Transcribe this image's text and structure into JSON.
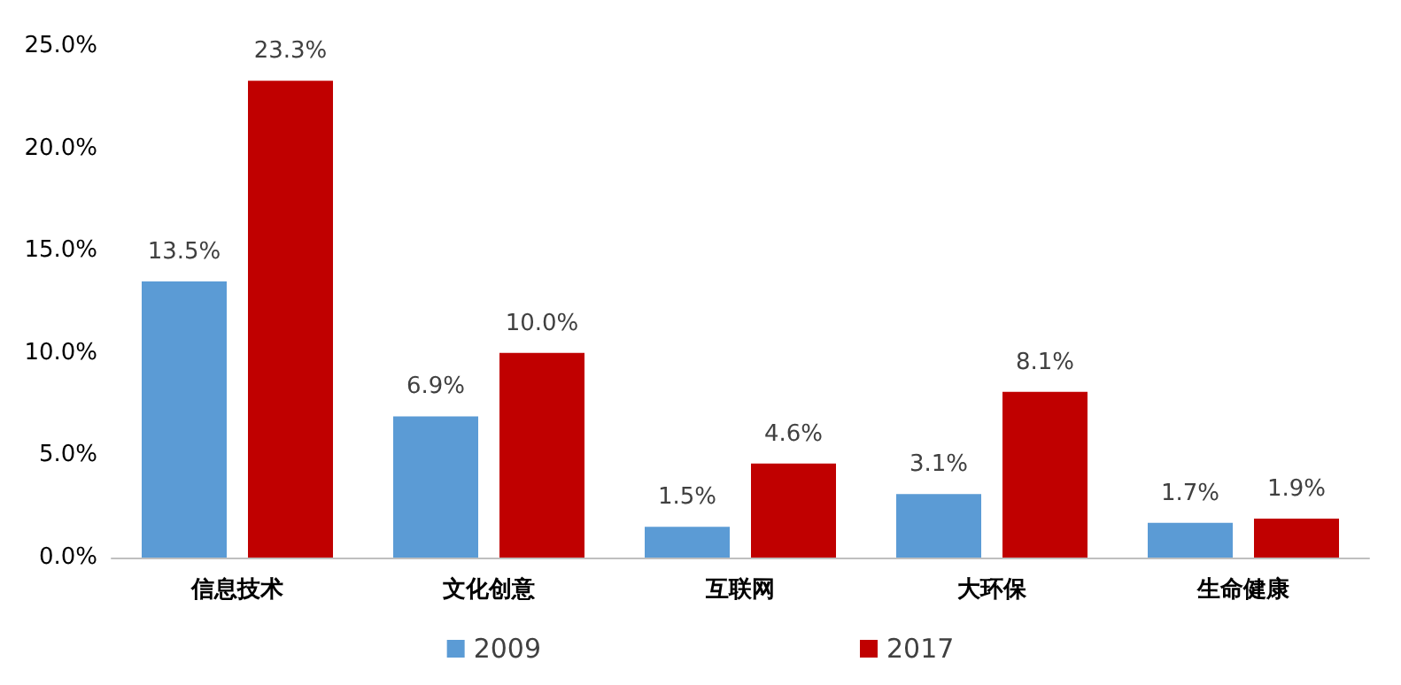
{
  "chart_data": {
    "type": "bar",
    "categories": [
      "信息技术",
      "文化创意",
      "互联网",
      "大环保",
      "生命健康"
    ],
    "series": [
      {
        "name": "2009",
        "color": "#5b9bd5",
        "values": [
          13.5,
          6.9,
          1.5,
          3.1,
          1.7
        ],
        "value_labels": [
          "13.5%",
          "6.9%",
          "1.5%",
          "3.1%",
          "1.7%"
        ]
      },
      {
        "name": "2017",
        "color": "#c00000",
        "values": [
          23.3,
          10.0,
          4.6,
          8.1,
          1.9
        ],
        "value_labels": [
          "23.3%",
          "10.0%",
          "4.6%",
          "8.1%",
          "1.9%"
        ]
      }
    ],
    "ylim": [
      0,
      25
    ],
    "yticks": [
      {
        "value": 0,
        "label": "0.0%"
      },
      {
        "value": 5,
        "label": "5.0%"
      },
      {
        "value": 10,
        "label": "10.0%"
      },
      {
        "value": 15,
        "label": "15.0%"
      },
      {
        "value": 20,
        "label": "20.0%"
      },
      {
        "value": 25,
        "label": "25.0%"
      }
    ],
    "grid": false,
    "legend": "bottom"
  }
}
